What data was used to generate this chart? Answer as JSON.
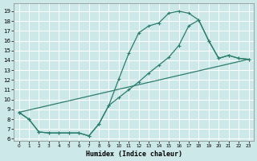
{
  "xlabel": "Humidex (Indice chaleur)",
  "bg_color": "#cce8e8",
  "grid_color": "#b8d8d8",
  "line_color": "#2e7d6e",
  "xlim": [
    -0.5,
    23.5
  ],
  "ylim": [
    5.8,
    19.8
  ],
  "xticks": [
    0,
    1,
    2,
    3,
    4,
    5,
    6,
    7,
    8,
    9,
    10,
    11,
    12,
    13,
    14,
    15,
    16,
    17,
    18,
    19,
    20,
    21,
    22,
    23
  ],
  "yticks": [
    6,
    7,
    8,
    9,
    10,
    11,
    12,
    13,
    14,
    15,
    16,
    17,
    18,
    19
  ],
  "curve1_x": [
    0,
    1,
    2,
    3,
    4,
    5,
    6,
    7,
    8,
    9,
    10,
    11,
    12,
    13,
    14,
    15,
    16,
    17,
    18,
    19,
    20,
    21,
    22,
    23
  ],
  "curve1_y": [
    8.7,
    8.0,
    6.7,
    6.6,
    6.6,
    6.6,
    6.6,
    6.3,
    7.5,
    9.4,
    12.1,
    14.7,
    16.8,
    17.5,
    17.8,
    18.8,
    19.0,
    18.8,
    18.1,
    16.0,
    14.2,
    14.5,
    14.2,
    14.1
  ],
  "curve2_x": [
    0,
    1,
    2,
    3,
    4,
    5,
    6,
    7,
    8,
    9,
    10,
    11,
    12,
    13,
    14,
    15,
    16,
    17,
    18,
    19,
    20,
    21,
    22,
    23
  ],
  "curve2_y": [
    8.7,
    8.0,
    6.7,
    6.6,
    6.6,
    6.6,
    6.6,
    6.3,
    7.5,
    9.4,
    10.2,
    11.0,
    11.8,
    12.7,
    13.5,
    14.3,
    15.5,
    17.5,
    18.1,
    16.0,
    14.2,
    14.5,
    14.2,
    14.1
  ],
  "line3_x": [
    0,
    23
  ],
  "line3_y": [
    8.7,
    14.1
  ]
}
